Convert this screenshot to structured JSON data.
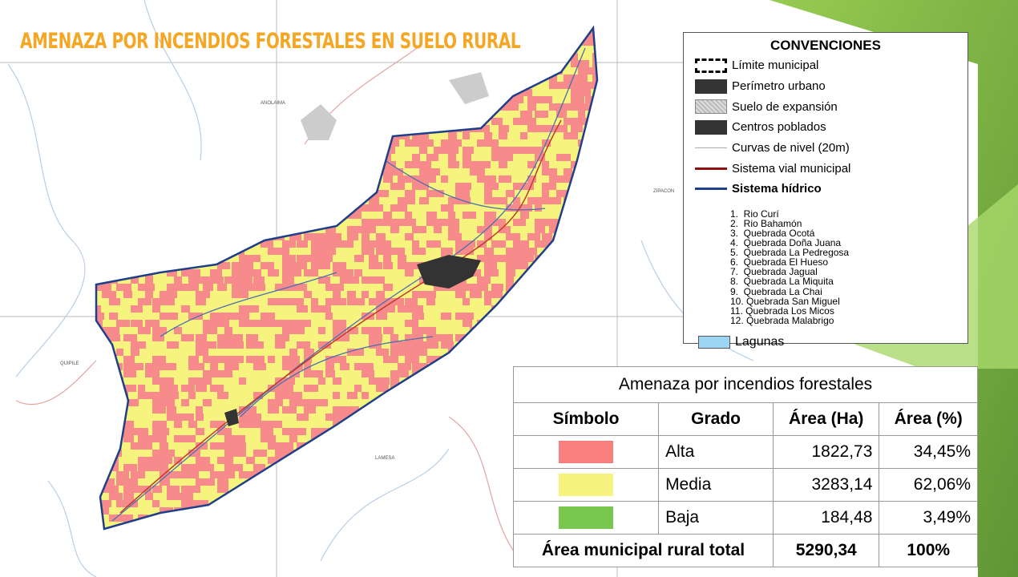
{
  "title": "AMENAZA POR INCENDIOS FORESTALES EN SUELO RURAL",
  "map_labels": [
    "ANOLAIMA",
    "ZIPACON",
    "QUIPILE",
    "LAMESA"
  ],
  "legend": {
    "title": "CONVENCIONES",
    "items": [
      "Límite municipal",
      "Perímetro urbano",
      "Suelo de expansión",
      "Centros poblados",
      "Curvas de nivel (20m)",
      "Sistema vial municipal",
      "Sistema hídrico"
    ],
    "rivers": [
      "1.  Rio Curí",
      "2.  Rio Bahamón",
      "3.  Quebrada Ocotá",
      "4.  Quebrada Doña Juana",
      "5.  Quebrada La Pedregosa",
      "6.  Quebrada El Hueso",
      "7.  Quebrada Jagual",
      "8.  Quebrada La Miquita",
      "9.  Quebrada La Chai",
      "10. Quebrada San Miguel",
      "11. Quebrada Los Micos",
      "12. Quebrada Malabrigo"
    ],
    "lagoons": "Lagunas"
  },
  "table": {
    "title": "Amenaza por incendios forestales",
    "header": [
      "Símbolo",
      "Grado",
      "Área (Ha)",
      "Área (%)"
    ],
    "rows": [
      [
        "Alta",
        "1822,73",
        "34,45%"
      ],
      [
        "Media",
        "3283,14",
        "62,06%"
      ],
      [
        "Baja",
        "184,48",
        "3,49%"
      ]
    ],
    "total": [
      "Área municipal rural total",
      "5290,34",
      "100%"
    ]
  }
}
